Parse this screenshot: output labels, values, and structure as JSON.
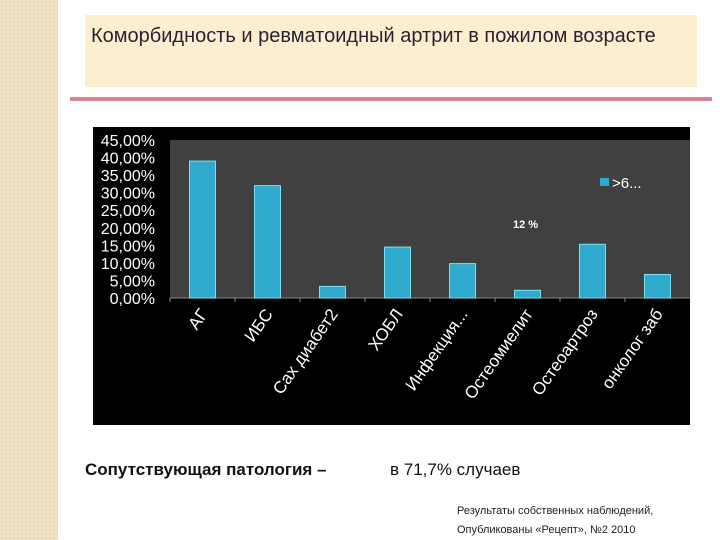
{
  "title": "Комορбидность и ревматоидный артрит в пожилом возрасте",
  "summary": {
    "label": "Сопутствующая патология –",
    "value": "в 71,7% случаев"
  },
  "source": {
    "line1": "Результаты собственных наблюдений,",
    "line2": "Опубликованы «Рецепт», №2 2010"
  },
  "chart_data": {
    "type": "bar",
    "categories": [
      "АГ",
      "ИБС",
      "Сах диабет2",
      "ХОБЛ",
      "Инфекция...",
      "Остеомиелит",
      "Остеоартроз",
      "онколог заб"
    ],
    "series": [
      {
        "name": ">6...",
        "values": [
          39,
          32,
          3.3,
          14.5,
          9.8,
          2.2,
          15.3,
          6.7
        ]
      }
    ],
    "yticks": [
      "0,00%",
      "5,00%",
      "10,00%",
      "15,00%",
      "20,00%",
      "25,00%",
      "30,00%",
      "35,00%",
      "40,00%",
      "45,00%"
    ],
    "ylim": [
      0,
      45
    ],
    "annotation": "12 %",
    "legend": ">6...",
    "legend_position": "right",
    "colors": {
      "bar": "#2fa9cc",
      "plot": "#404040",
      "bg": "#000000"
    }
  }
}
